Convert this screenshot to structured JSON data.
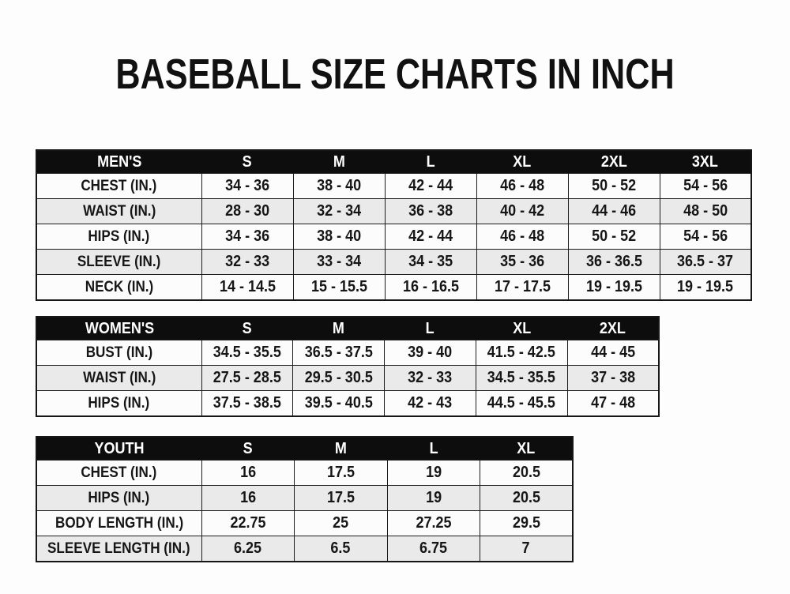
{
  "page": {
    "title": "BASEBALL SIZE CHARTS IN INCH"
  },
  "colors": {
    "page_background": "#fdfdfd",
    "header_background": "#0d0d0d",
    "header_text": "#ffffff",
    "row_white": "#fcfcfc",
    "row_gray": "#eaeaea",
    "border": "#1c1c1c",
    "text": "#161616"
  },
  "tables": [
    {
      "id": "mens",
      "header": [
        "MEN'S",
        "S",
        "M",
        "L",
        "XL",
        "2XL",
        "3XL"
      ],
      "rows": [
        [
          "CHEST (IN.)",
          "34 - 36",
          "38 - 40",
          "42 - 44",
          "46 - 48",
          "50 - 52",
          "54 - 56"
        ],
        [
          "WAIST (IN.)",
          "28 - 30",
          "32 - 34",
          "36 - 38",
          "40 - 42",
          "44 - 46",
          "48 - 50"
        ],
        [
          "HIPS (IN.)",
          "34 - 36",
          "38 - 40",
          "42 - 44",
          "46 - 48",
          "50 - 52",
          "54 - 56"
        ],
        [
          "SLEEVE (IN.)",
          "32 - 33",
          "33 - 34",
          "34 - 35",
          "35 - 36",
          "36 - 36.5",
          "36.5 - 37"
        ],
        [
          "NECK (IN.)",
          "14 - 14.5",
          "15 - 15.5",
          "16 - 16.5",
          "17 - 17.5",
          "19 - 19.5",
          "19 - 19.5"
        ]
      ]
    },
    {
      "id": "womens",
      "header": [
        "WOMEN'S",
        "S",
        "M",
        "L",
        "XL",
        "2XL"
      ],
      "rows": [
        [
          "BUST (IN.)",
          "34.5 - 35.5",
          "36.5 - 37.5",
          "39 - 40",
          "41.5 - 42.5",
          "44 - 45"
        ],
        [
          "WAIST (IN.)",
          "27.5 - 28.5",
          "29.5 - 30.5",
          "32 - 33",
          "34.5 - 35.5",
          "37 - 38"
        ],
        [
          "HIPS (IN.)",
          "37.5 - 38.5",
          "39.5 - 40.5",
          "42 - 43",
          "44.5 - 45.5",
          "47 - 48"
        ]
      ]
    },
    {
      "id": "youth",
      "header": [
        "YOUTH",
        "S",
        "M",
        "L",
        "XL"
      ],
      "rows": [
        [
          "CHEST (IN.)",
          "16",
          "17.5",
          "19",
          "20.5"
        ],
        [
          "HIPS (IN.)",
          "16",
          "17.5",
          "19",
          "20.5"
        ],
        [
          "BODY LENGTH (IN.)",
          "22.75",
          "25",
          "27.25",
          "29.5"
        ],
        [
          "SLEEVE LENGTH (IN.)",
          "6.25",
          "6.5",
          "6.75",
          "7"
        ]
      ]
    }
  ]
}
